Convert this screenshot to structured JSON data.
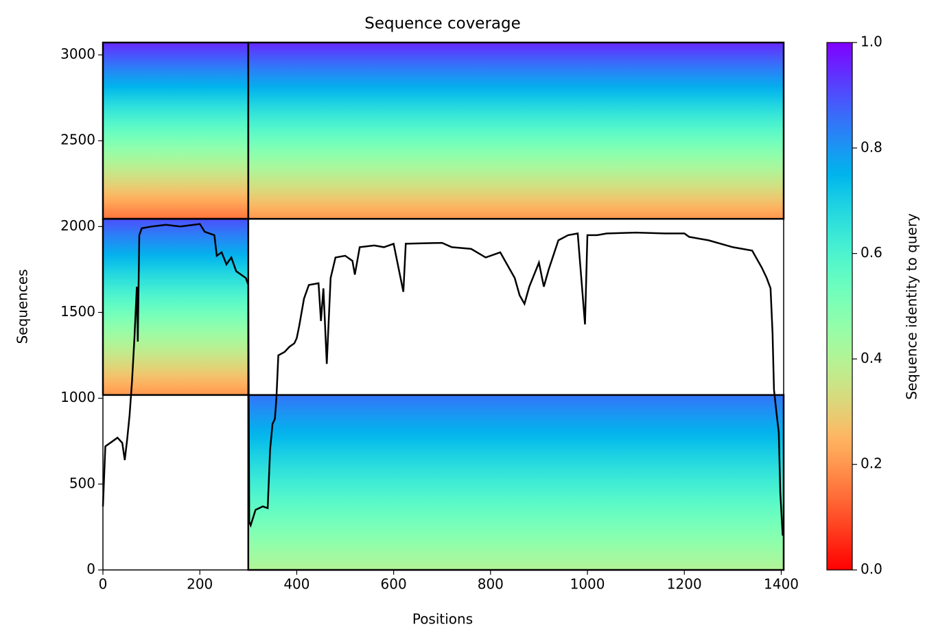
{
  "chart_data": {
    "type": "coverage",
    "title": "Sequence coverage",
    "xlabel": "Positions",
    "ylabel": "Sequences",
    "colorbar_label": "Sequence identity to query",
    "colormap": "rainbow_r",
    "xlim": [
      0,
      1405
    ],
    "xticks": [
      0,
      200,
      400,
      600,
      800,
      1000,
      1200,
      1400
    ],
    "ylim": [
      0,
      3072
    ],
    "yticks": [
      0,
      500,
      1000,
      1500,
      2000,
      2500,
      3000
    ],
    "clim": [
      0,
      1
    ],
    "cticks": [
      {
        "value": 0,
        "label": "0.0"
      },
      0.2,
      0.4,
      0.6,
      0.8,
      {
        "value": 1,
        "label": "1.0"
      }
    ],
    "blocks": [
      {
        "x": [
          0,
          300
        ],
        "y": [
          2045,
          3072
        ],
        "identity": [
          0.95,
          0.15
        ]
      },
      {
        "x": [
          300,
          1405
        ],
        "y": [
          2045,
          3072
        ],
        "identity": [
          0.95,
          0.2
        ]
      },
      {
        "x": [
          0,
          300
        ],
        "y": [
          1019,
          2045
        ],
        "identity": [
          0.9,
          0.2
        ]
      },
      {
        "x": [
          300,
          1405
        ],
        "y": [
          0,
          1019
        ],
        "identity": [
          0.85,
          0.4
        ]
      }
    ],
    "coverage": {
      "color": "#000000",
      "x": [
        0,
        5,
        20,
        30,
        40,
        45,
        50,
        55,
        60,
        65,
        70,
        72,
        75,
        80,
        100,
        130,
        160,
        200,
        210,
        230,
        235,
        245,
        255,
        265,
        275,
        285,
        295,
        300,
        302,
        305,
        315,
        330,
        340,
        345,
        350,
        355,
        358,
        362,
        375,
        385,
        395,
        400,
        405,
        415,
        425,
        445,
        450,
        455,
        462,
        470,
        480,
        500,
        515,
        520,
        530,
        560,
        580,
        600,
        620,
        625,
        700,
        720,
        760,
        790,
        820,
        850,
        860,
        870,
        880,
        900,
        910,
        920,
        940,
        960,
        980,
        995,
        1000,
        1020,
        1040,
        1100,
        1160,
        1200,
        1210,
        1250,
        1300,
        1340,
        1360,
        1370,
        1378,
        1382,
        1385,
        1390,
        1395,
        1398,
        1403
      ],
      "y": [
        370,
        720,
        750,
        770,
        740,
        640,
        760,
        900,
        1100,
        1350,
        1650,
        1330,
        1950,
        1990,
        2000,
        2010,
        2000,
        2015,
        1970,
        1950,
        1830,
        1850,
        1780,
        1820,
        1740,
        1720,
        1700,
        1660,
        280,
        260,
        350,
        370,
        360,
        700,
        850,
        880,
        1000,
        1250,
        1270,
        1300,
        1320,
        1350,
        1420,
        1580,
        1660,
        1670,
        1450,
        1640,
        1200,
        1700,
        1820,
        1830,
        1800,
        1720,
        1880,
        1890,
        1880,
        1900,
        1620,
        1900,
        1905,
        1880,
        1870,
        1820,
        1850,
        1700,
        1600,
        1550,
        1650,
        1790,
        1650,
        1750,
        1920,
        1950,
        1960,
        1430,
        1950,
        1950,
        1960,
        1965,
        1960,
        1960,
        1940,
        1920,
        1880,
        1860,
        1760,
        1700,
        1640,
        1380,
        1050,
        920,
        800,
        450,
        200
      ]
    }
  }
}
